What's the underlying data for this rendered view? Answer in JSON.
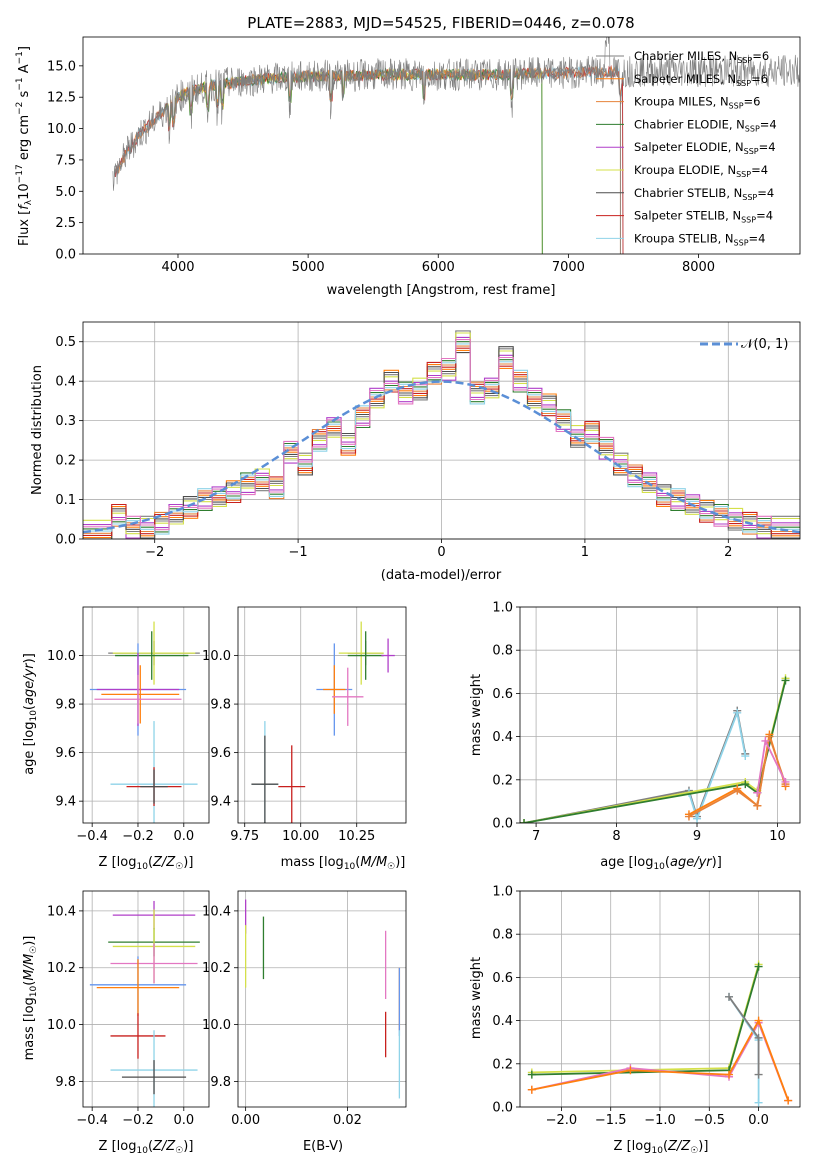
{
  "colors": {
    "Chabrier MILES": "#7f7f7f",
    "Salpeter MILES": "#ff7f0e",
    "Kroupa MILES": "#e6823a",
    "Chabrier ELODIE": "#2f7d2f",
    "Salpeter ELODIE": "#b03fc9",
    "Kroupa ELODIE": "#d4e04a",
    "Chabrier STELIB": "#4d4d4d",
    "Salpeter STELIB": "#c8201e",
    "Kroupa STELIB": "#8fd3e8",
    "extra_pink": "#e377c2",
    "extra_blue": "#6495ed",
    "normal_curve": "#5b8fd6"
  },
  "chart_data": [
    {
      "id": "spectrum",
      "type": "line",
      "title": "PLATE=2883, MJD=54525, FIBERID=0446, z=0.078",
      "xlabel": "wavelength [Angstrom, rest frame]",
      "ylabel": "Flux [f_λ10⁻¹⁷ erg cm⁻² s⁻¹ A⁻¹]",
      "xlim": [
        3270,
        8780
      ],
      "ylim": [
        0,
        17.3
      ],
      "xticks": [
        "4000",
        "5000",
        "6000",
        "7000",
        "8000"
      ],
      "yticks": [
        "0.0",
        "2.5",
        "5.0",
        "7.5",
        "10.0",
        "12.5",
        "15.0"
      ],
      "legend_position": "right",
      "legend": [
        {
          "label": "Chabrier MILES, N_SSP=6",
          "key": "Chabrier MILES"
        },
        {
          "label": "Salpeter MILES, N_SSP=6",
          "key": "Salpeter MILES"
        },
        {
          "label": "Kroupa MILES, N_SSP=6",
          "key": "Kroupa MILES"
        },
        {
          "label": "Chabrier ELODIE, N_SSP=4",
          "key": "Chabrier ELODIE"
        },
        {
          "label": "Salpeter ELODIE, N_SSP=4",
          "key": "Salpeter ELODIE"
        },
        {
          "label": "Kroupa ELODIE, N_SSP=4",
          "key": "Kroupa ELODIE"
        },
        {
          "label": "Chabrier STELIB, N_SSP=4",
          "key": "Chabrier STELIB"
        },
        {
          "label": "Salpeter STELIB, N_SSP=4",
          "key": "Salpeter STELIB"
        },
        {
          "label": "Kroupa STELIB, N_SSP=4",
          "key": "Kroupa STELIB"
        }
      ],
      "continuum": {
        "x": [
          3500,
          3600,
          3700,
          3800,
          3900,
          4000,
          4100,
          4200,
          4300,
          4500,
          4700,
          4900,
          5100,
          5300,
          5500,
          5700,
          5900,
          6100,
          6300,
          6500,
          6700,
          6900,
          7100,
          7300,
          7500,
          7700,
          7900,
          8100,
          8300,
          8500,
          8780
        ],
        "y": [
          6.0,
          8.0,
          9.5,
          10.5,
          11.5,
          12.5,
          13.0,
          13.3,
          13.5,
          13.8,
          14.0,
          14.1,
          14.2,
          14.2,
          14.3,
          14.3,
          14.3,
          14.3,
          14.3,
          14.3,
          14.4,
          14.4,
          14.5,
          14.5,
          14.6,
          14.6,
          14.6,
          14.6,
          14.6,
          14.6,
          14.6
        ]
      }
    },
    {
      "id": "residuals",
      "type": "step",
      "xlabel": "(data-model)/error",
      "ylabel": "Normed distribution",
      "xlim": [
        -2.5,
        2.5
      ],
      "ylim": [
        0,
        0.55
      ],
      "xticks": [
        "−2",
        "−1",
        "0",
        "1",
        "2"
      ],
      "yticks": [
        "0.0",
        "0.1",
        "0.2",
        "0.3",
        "0.4",
        "0.5"
      ],
      "legend": "𝒩(0, 1)",
      "legend_position": "upper right",
      "bin_edges": [
        -2.5,
        -2.3,
        -2.2,
        -2.1,
        -2.0,
        -1.9,
        -1.8,
        -1.7,
        -1.6,
        -1.5,
        -1.4,
        -1.3,
        -1.2,
        -1.1,
        -1.0,
        -0.9,
        -0.8,
        -0.7,
        -0.6,
        -0.5,
        -0.4,
        -0.3,
        -0.2,
        -0.1,
        0.0,
        0.1,
        0.2,
        0.3,
        0.4,
        0.5,
        0.6,
        0.7,
        0.8,
        0.9,
        1.0,
        1.1,
        1.2,
        1.3,
        1.4,
        1.5,
        1.6,
        1.7,
        1.8,
        1.9,
        2.0,
        2.1,
        2.2,
        2.3,
        2.5
      ],
      "values": [
        0.02,
        0.06,
        0.03,
        0.03,
        0.04,
        0.06,
        0.08,
        0.1,
        0.11,
        0.12,
        0.14,
        0.15,
        0.13,
        0.22,
        0.19,
        0.25,
        0.28,
        0.24,
        0.31,
        0.36,
        0.4,
        0.37,
        0.38,
        0.42,
        0.43,
        0.5,
        0.37,
        0.38,
        0.46,
        0.4,
        0.36,
        0.34,
        0.3,
        0.26,
        0.27,
        0.23,
        0.19,
        0.16,
        0.14,
        0.11,
        0.1,
        0.09,
        0.07,
        0.06,
        0.05,
        0.04,
        0.03,
        0.03
      ],
      "normal_curve": {
        "mu": 0,
        "sigma": 1
      }
    },
    {
      "id": "age_vs_Z",
      "type": "errorbar",
      "xlabel": "Z [log10(Z/Z☉)]",
      "ylabel": "age  [log10(age/yr)]",
      "xlim": [
        -0.44,
        0.11
      ],
      "ylim": [
        9.31,
        10.2
      ],
      "xticks": [
        "−0.4",
        "−0.2",
        "0.0"
      ],
      "yticks": [
        "9.4",
        "9.6",
        "9.8",
        "10.0"
      ],
      "points": [
        {
          "x": -0.13,
          "y": 10.01,
          "xerr": 0.2,
          "yerr": 0.05,
          "color": "#7f7f7f"
        },
        {
          "x": -0.13,
          "y": 10.01,
          "xerr": 0.18,
          "yerr": 0.13,
          "color": "#d4e04a"
        },
        {
          "x": -0.14,
          "y": 10.0,
          "xerr": 0.16,
          "yerr": 0.1,
          "color": "#2f7d2f"
        },
        {
          "x": -0.2,
          "y": 9.86,
          "xerr": 0.21,
          "yerr": 0.19,
          "color": "#6495ed"
        },
        {
          "x": -0.2,
          "y": 9.86,
          "xerr": 0.18,
          "yerr": 0.15,
          "color": "#b03fc9"
        },
        {
          "x": -0.19,
          "y": 9.84,
          "xerr": 0.17,
          "yerr": 0.12,
          "color": "#ff7f0e"
        },
        {
          "x": -0.2,
          "y": 9.82,
          "xerr": 0.19,
          "yerr": 0.1,
          "color": "#e377c2"
        },
        {
          "x": -0.13,
          "y": 9.47,
          "xerr": 0.19,
          "yerr": 0.26,
          "color": "#8fd3e8"
        },
        {
          "x": -0.13,
          "y": 9.46,
          "xerr": 0.12,
          "yerr": 0.08,
          "color": "#c8201e"
        },
        {
          "x": -0.13,
          "y": 9.46,
          "xerr": 0.06,
          "yerr": 0.07,
          "color": "#4d4d4d"
        }
      ]
    },
    {
      "id": "age_vs_mass",
      "type": "errorbar",
      "xlabel": "mass [log10(M/M☉)]",
      "xlim": [
        9.72,
        10.47
      ],
      "ylim": [
        9.31,
        10.2
      ],
      "xticks": [
        "9.75",
        "10.00",
        "10.25"
      ],
      "yticks": [
        "9.4",
        "9.6",
        "9.8",
        "10.0"
      ],
      "points": [
        {
          "x": 10.29,
          "y": 10.01,
          "xerr": 0.08,
          "yerr": 0.05,
          "color": "#7f7f7f"
        },
        {
          "x": 10.27,
          "y": 10.01,
          "xerr": 0.1,
          "yerr": 0.13,
          "color": "#d4e04a"
        },
        {
          "x": 10.29,
          "y": 10.0,
          "xerr": 0.08,
          "yerr": 0.1,
          "color": "#2f7d2f"
        },
        {
          "x": 10.39,
          "y": 10.0,
          "xerr": 0.03,
          "yerr": 0.07,
          "color": "#b03fc9"
        },
        {
          "x": 10.15,
          "y": 9.86,
          "xerr": 0.08,
          "yerr": 0.19,
          "color": "#6495ed"
        },
        {
          "x": 10.15,
          "y": 9.86,
          "xerr": 0.05,
          "yerr": 0.1,
          "color": "#ff7f0e"
        },
        {
          "x": 10.21,
          "y": 9.83,
          "xerr": 0.07,
          "yerr": 0.12,
          "color": "#e377c2"
        },
        {
          "x": 9.84,
          "y": 9.47,
          "xerr": 0.06,
          "yerr": 0.26,
          "color": "#8fd3e8"
        },
        {
          "x": 9.96,
          "y": 9.46,
          "xerr": 0.06,
          "yerr": 0.17,
          "color": "#c8201e"
        },
        {
          "x": 9.84,
          "y": 9.47,
          "xerr": 0.06,
          "yerr": 0.2,
          "color": "#4d4d4d"
        }
      ]
    },
    {
      "id": "weight_vs_age",
      "type": "line",
      "xlabel": "age  [log10(age/yr)]",
      "ylabel": "mass weight",
      "xlim": [
        6.8,
        10.28
      ],
      "ylim": [
        0,
        1.0
      ],
      "xticks": [
        "7",
        "8",
        "9",
        "10"
      ],
      "yticks": [
        "0.0",
        "0.2",
        "0.4",
        "0.6",
        "0.8",
        "1.0"
      ],
      "series": [
        {
          "key": "Chabrier MILES",
          "x": [
            6.85,
            8.9,
            9.0,
            9.5,
            9.6
          ],
          "y": [
            0.0,
            0.15,
            0.03,
            0.52,
            0.32
          ]
        },
        {
          "key": "Kroupa STELIB",
          "x": [
            8.9,
            9.0,
            9.5,
            9.6
          ],
          "y": [
            0.14,
            0.02,
            0.51,
            0.31
          ]
        },
        {
          "key": "Kroupa ELODIE",
          "x": [
            6.85,
            9.6,
            9.75,
            10.1
          ],
          "y": [
            0.0,
            0.19,
            0.15,
            0.67
          ]
        },
        {
          "key": "Chabrier ELODIE",
          "x": [
            6.85,
            9.6,
            9.75,
            10.1
          ],
          "y": [
            0.0,
            0.18,
            0.14,
            0.66
          ]
        },
        {
          "key": "Salpeter MILES",
          "x": [
            8.9,
            9.5,
            9.75,
            9.9,
            10.1
          ],
          "y": [
            0.04,
            0.16,
            0.08,
            0.41,
            0.17
          ]
        },
        {
          "key": "Kroupa MILES",
          "x": [
            8.9,
            9.5,
            9.75,
            9.9,
            10.1
          ],
          "y": [
            0.03,
            0.15,
            0.08,
            0.4,
            0.18
          ]
        },
        {
          "key": "extra_pink",
          "x": [
            9.75,
            9.85,
            10.1
          ],
          "y": [
            0.14,
            0.38,
            0.19
          ]
        }
      ]
    },
    {
      "id": "mass_vs_Z",
      "type": "errorbar",
      "xlabel": "Z [log10(Z/Z☉)]",
      "ylabel": "mass [log10(M/M☉)]",
      "xlim": [
        -0.44,
        0.11
      ],
      "ylim": [
        9.71,
        10.47
      ],
      "xticks": [
        "−0.4",
        "−0.2",
        "0.0"
      ],
      "yticks": [
        "9.8",
        "10.0",
        "10.2",
        "10.4"
      ],
      "points": [
        {
          "x": -0.13,
          "y": 10.385,
          "xerr": 0.18,
          "yerr": 0.05,
          "color": "#b03fc9"
        },
        {
          "x": -0.13,
          "y": 10.29,
          "xerr": 0.2,
          "yerr": 0.05,
          "color": "#2f7d2f"
        },
        {
          "x": -0.13,
          "y": 10.275,
          "xerr": 0.18,
          "yerr": 0.13,
          "color": "#d4e04a"
        },
        {
          "x": -0.13,
          "y": 10.215,
          "xerr": 0.19,
          "yerr": 0.07,
          "color": "#e377c2"
        },
        {
          "x": -0.2,
          "y": 10.14,
          "xerr": 0.21,
          "yerr": 0.1,
          "color": "#6495ed"
        },
        {
          "x": -0.2,
          "y": 10.13,
          "xerr": 0.18,
          "yerr": 0.1,
          "color": "#ff7f0e"
        },
        {
          "x": -0.2,
          "y": 9.96,
          "xerr": 0.12,
          "yerr": 0.08,
          "color": "#c8201e"
        },
        {
          "x": -0.13,
          "y": 9.84,
          "xerr": 0.19,
          "yerr": 0.14,
          "color": "#8fd3e8"
        },
        {
          "x": -0.13,
          "y": 9.815,
          "xerr": 0.14,
          "yerr": 0.06,
          "color": "#4d4d4d"
        }
      ]
    },
    {
      "id": "mass_vs_ebv",
      "type": "errorbar",
      "xlabel": "E(B-V)",
      "xlim": [
        -0.0015,
        0.0315
      ],
      "ylim": [
        9.71,
        10.47
      ],
      "xticks": [
        "0.00",
        "0.02"
      ],
      "yticks": [
        "9.8",
        "10.0",
        "10.2",
        "10.4"
      ],
      "points": [
        {
          "x": 0.0,
          "y": 10.38,
          "xerr": 0,
          "yerr": 0.06,
          "color": "#b03fc9"
        },
        {
          "x": 0.0,
          "y": 10.24,
          "xerr": 0,
          "yerr": 0.11,
          "color": "#d4e04a"
        },
        {
          "x": 0.0035,
          "y": 10.27,
          "xerr": 0,
          "yerr": 0.11,
          "color": "#2f7d2f"
        },
        {
          "x": 0.0275,
          "y": 10.21,
          "xerr": 0,
          "yerr": 0.12,
          "color": "#e377c2"
        },
        {
          "x": 0.0275,
          "y": 9.965,
          "xerr": 0,
          "yerr": 0.08,
          "color": "#c8201e"
        },
        {
          "x": 0.0302,
          "y": 10.09,
          "xerr": 0,
          "yerr": 0.11,
          "color": "#ff7f0e"
        },
        {
          "x": 0.0302,
          "y": 10.08,
          "xerr": 0,
          "yerr": 0.12,
          "color": "#6495ed"
        },
        {
          "x": 0.0302,
          "y": 9.86,
          "xerr": 0,
          "yerr": 0.12,
          "color": "#8fd3e8"
        }
      ]
    },
    {
      "id": "weight_vs_Z",
      "type": "line",
      "xlabel": "Z [log10(Z/Z☉)]",
      "ylabel": "mass weight",
      "xlim": [
        -2.42,
        0.42
      ],
      "ylim": [
        0,
        1.0
      ],
      "xticks": [
        "−2.0",
        "−1.5",
        "−1.0",
        "−0.5",
        "0.0"
      ],
      "yticks": [
        "0.0",
        "0.2",
        "0.4",
        "0.6",
        "0.8",
        "1.0"
      ],
      "series": [
        {
          "key": "Kroupa ELODIE",
          "x": [
            -2.3,
            -0.3,
            0.0
          ],
          "y": [
            0.16,
            0.18,
            0.66
          ]
        },
        {
          "key": "Chabrier ELODIE",
          "x": [
            -2.3,
            -0.3,
            0.0
          ],
          "y": [
            0.15,
            0.17,
            0.65
          ]
        },
        {
          "key": "extra_pink",
          "x": [
            -2.3,
            -1.3,
            -0.3,
            0.0,
            0.3
          ],
          "y": [
            0.08,
            0.18,
            0.14,
            0.39,
            0.03
          ]
        },
        {
          "key": "Salpeter MILES",
          "x": [
            -2.3,
            -1.3,
            -0.3,
            0.0,
            0.3
          ],
          "y": [
            0.08,
            0.17,
            0.15,
            0.4,
            0.03
          ]
        },
        {
          "key": "Kroupa STELIB",
          "x": [
            -0.3,
            0.0,
            0.0
          ],
          "y": [
            0.51,
            0.31,
            0.02
          ]
        },
        {
          "key": "Chabrier MILES",
          "x": [
            -0.3,
            0.0,
            0.0
          ],
          "y": [
            0.51,
            0.32,
            0.15
          ]
        }
      ]
    }
  ]
}
